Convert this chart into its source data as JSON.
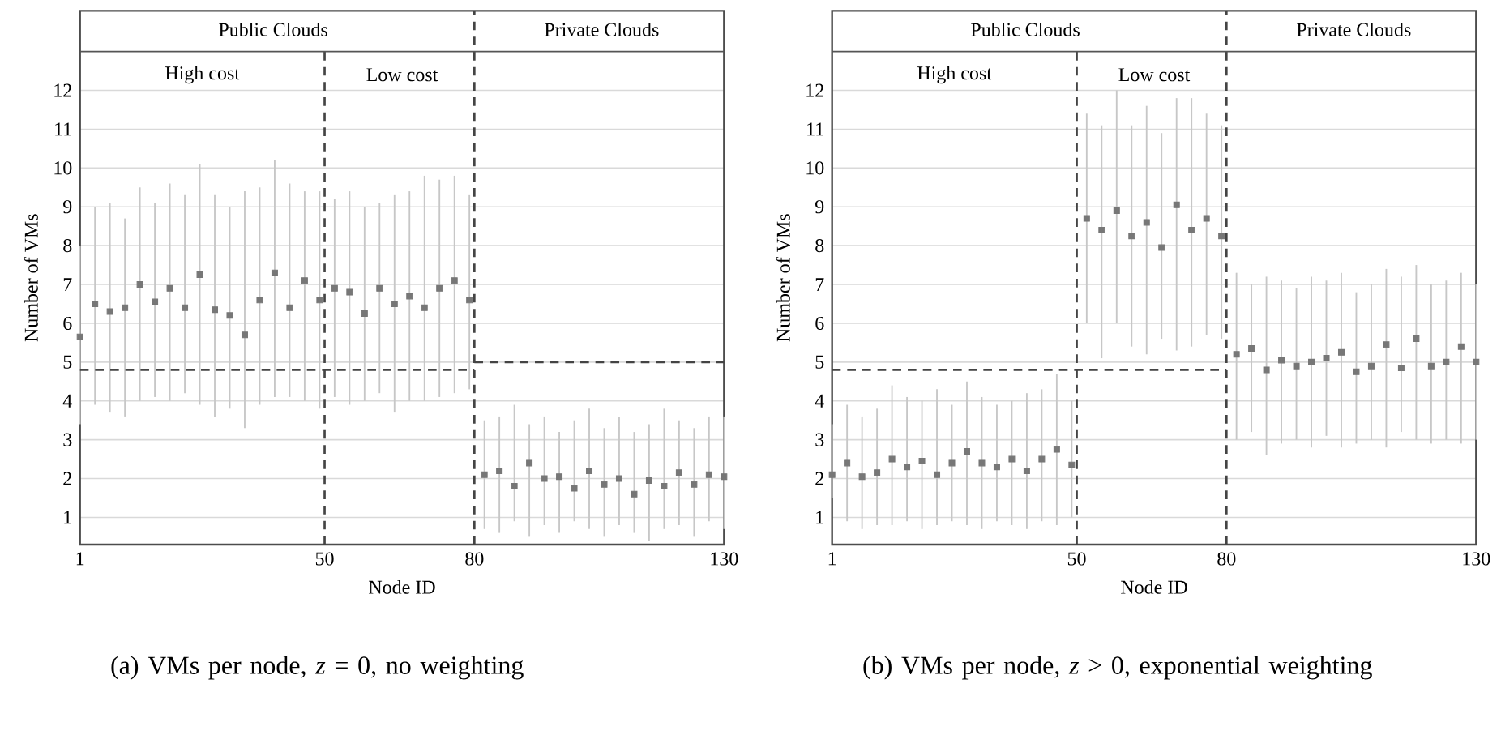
{
  "chart_data": [
    {
      "type": "scatter",
      "xlabel": "Node ID",
      "ylabel": "Number of VMs",
      "xlim": [
        1,
        130
      ],
      "xticks": [
        1,
        50,
        80,
        130
      ],
      "ylim": [
        0.3,
        14.05
      ],
      "yticks": [
        1,
        2,
        3,
        4,
        5,
        6,
        7,
        8,
        9,
        10,
        11,
        12
      ],
      "grid": "y",
      "series": [
        {
          "color": "#777777",
          "marker": "square",
          "x": [
            1,
            4,
            7,
            10,
            13,
            16,
            19,
            22,
            25,
            28,
            31,
            34,
            37,
            40,
            43,
            46,
            49,
            52,
            55,
            58,
            61,
            64,
            67,
            70,
            73,
            76,
            79,
            82,
            85,
            88,
            91,
            94,
            97,
            100,
            103,
            106,
            109,
            112,
            115,
            118,
            121,
            124,
            127,
            130
          ],
          "values": [
            5.65,
            6.5,
            6.3,
            6.4,
            7.0,
            6.55,
            6.9,
            6.4,
            7.25,
            6.35,
            6.2,
            5.7,
            6.6,
            7.3,
            6.4,
            7.1,
            6.6,
            6.9,
            6.8,
            6.25,
            6.9,
            6.5,
            6.7,
            6.4,
            6.9,
            7.1,
            6.6,
            2.1,
            2.2,
            1.8,
            2.4,
            2.0,
            2.05,
            1.75,
            2.2,
            1.85,
            2.0,
            1.6,
            1.95,
            1.8,
            2.15,
            1.85,
            2.1,
            2.05
          ],
          "errors": [
            [
              3.4,
              8.0
            ],
            [
              3.9,
              9.0
            ],
            [
              3.7,
              9.1
            ],
            [
              3.6,
              8.7
            ],
            [
              4.0,
              9.5
            ],
            [
              4.1,
              9.1
            ],
            [
              4.0,
              9.6
            ],
            [
              4.2,
              9.3
            ],
            [
              3.9,
              10.1
            ],
            [
              3.6,
              9.3
            ],
            [
              3.8,
              9.0
            ],
            [
              3.3,
              9.4
            ],
            [
              3.9,
              9.5
            ],
            [
              4.1,
              10.2
            ],
            [
              4.1,
              9.6
            ],
            [
              4.0,
              9.4
            ],
            [
              3.8,
              9.4
            ],
            [
              4.1,
              9.2
            ],
            [
              3.9,
              9.4
            ],
            [
              4.0,
              9.0
            ],
            [
              4.2,
              9.1
            ],
            [
              3.7,
              9.3
            ],
            [
              4.0,
              9.4
            ],
            [
              4.0,
              9.8
            ],
            [
              4.1,
              9.7
            ],
            [
              4.2,
              9.8
            ],
            [
              4.3,
              9.3
            ],
            [
              0.7,
              3.5
            ],
            [
              0.6,
              3.6
            ],
            [
              0.9,
              3.9
            ],
            [
              0.5,
              3.4
            ],
            [
              0.8,
              3.6
            ],
            [
              0.6,
              3.2
            ],
            [
              0.9,
              3.5
            ],
            [
              0.7,
              3.8
            ],
            [
              0.5,
              3.3
            ],
            [
              0.8,
              3.6
            ],
            [
              0.6,
              3.2
            ],
            [
              0.4,
              3.4
            ],
            [
              0.7,
              3.8
            ],
            [
              0.8,
              3.5
            ],
            [
              0.5,
              3.3
            ],
            [
              0.9,
              3.6
            ],
            [
              0.7,
              3.6
            ]
          ]
        },
        {
          "type": "line",
          "color": "#444444",
          "line_style": "dashed",
          "x": [
            1,
            80
          ],
          "values": [
            4.8,
            4.8
          ]
        },
        {
          "type": "line",
          "color": "#444444",
          "line_style": "dashed",
          "x": [
            80,
            130
          ],
          "values": [
            5.0,
            5.0
          ]
        },
        {
          "type": "line",
          "color": "#444444",
          "line_style": "dashed",
          "x": [
            50,
            50
          ],
          "values": [
            0.3,
            13
          ]
        },
        {
          "type": "line",
          "color": "#444444",
          "line_style": "dashed",
          "x": [
            80,
            80
          ],
          "values": [
            0.3,
            14.05
          ]
        }
      ],
      "ref_lines": [
        {
          "axis": "y",
          "value": 13,
          "color": "#555555",
          "line_style": "solid"
        }
      ],
      "annotations": [
        "Public Clouds",
        "Private Clouds",
        "High cost",
        "Low cost",
        "(a) VMs per node, *z* = 0, no weighting"
      ]
    },
    {
      "type": "scatter",
      "xlabel": "Node ID",
      "ylabel": "Number of VMs",
      "xlim": [
        1,
        130
      ],
      "xticks": [
        1,
        50,
        80,
        130
      ],
      "ylim": [
        0.3,
        14.05
      ],
      "yticks": [
        1,
        2,
        3,
        4,
        5,
        6,
        7,
        8,
        9,
        10,
        11,
        12
      ],
      "grid": "y",
      "series": [
        {
          "color": "#777777",
          "marker": "square",
          "x": [
            1,
            4,
            7,
            10,
            13,
            16,
            19,
            22,
            25,
            28,
            31,
            34,
            37,
            40,
            43,
            46,
            49,
            52,
            55,
            58,
            61,
            64,
            67,
            70,
            73,
            76,
            79,
            82,
            85,
            88,
            91,
            94,
            97,
            100,
            103,
            106,
            109,
            112,
            115,
            118,
            121,
            124,
            127,
            130
          ],
          "values": [
            2.1,
            2.4,
            2.05,
            2.15,
            2.5,
            2.3,
            2.45,
            2.1,
            2.4,
            2.7,
            2.4,
            2.3,
            2.5,
            2.2,
            2.5,
            2.75,
            2.35,
            8.7,
            8.4,
            8.9,
            8.25,
            8.6,
            7.95,
            9.05,
            8.4,
            8.7,
            8.25,
            5.2,
            5.35,
            4.8,
            5.05,
            4.9,
            5.0,
            5.1,
            5.25,
            4.75,
            4.9,
            5.45,
            4.85,
            5.6,
            4.9,
            5.0,
            5.4,
            5.0
          ],
          "errors": [
            [
              1.5,
              3.4
            ],
            [
              0.9,
              3.9
            ],
            [
              0.7,
              3.6
            ],
            [
              0.8,
              3.8
            ],
            [
              0.8,
              4.4
            ],
            [
              0.9,
              4.1
            ],
            [
              0.7,
              4.0
            ],
            [
              0.8,
              4.3
            ],
            [
              0.9,
              3.9
            ],
            [
              0.8,
              4.5
            ],
            [
              0.7,
              4.1
            ],
            [
              0.9,
              3.9
            ],
            [
              0.8,
              4.0
            ],
            [
              0.7,
              4.2
            ],
            [
              0.9,
              4.3
            ],
            [
              0.8,
              4.7
            ],
            [
              1.0,
              4.0
            ],
            [
              6.0,
              11.4
            ],
            [
              5.1,
              11.1
            ],
            [
              6.0,
              12.0
            ],
            [
              5.4,
              11.1
            ],
            [
              5.2,
              11.6
            ],
            [
              5.6,
              10.9
            ],
            [
              5.3,
              11.8
            ],
            [
              5.4,
              11.8
            ],
            [
              5.7,
              11.4
            ],
            [
              5.6,
              11.1
            ],
            [
              3.0,
              7.3
            ],
            [
              3.2,
              7.0
            ],
            [
              2.6,
              7.2
            ],
            [
              2.9,
              7.1
            ],
            [
              3.0,
              6.9
            ],
            [
              2.8,
              7.2
            ],
            [
              3.1,
              7.1
            ],
            [
              2.8,
              7.3
            ],
            [
              2.9,
              6.8
            ],
            [
              3.0,
              7.0
            ],
            [
              2.8,
              7.4
            ],
            [
              3.2,
              7.2
            ],
            [
              3.0,
              7.5
            ],
            [
              2.9,
              7.0
            ],
            [
              3.0,
              7.1
            ],
            [
              2.9,
              7.3
            ],
            [
              3.0,
              7.0
            ]
          ]
        },
        {
          "type": "line",
          "color": "#444444",
          "line_style": "dashed",
          "x": [
            1,
            80
          ],
          "values": [
            4.8,
            4.8
          ]
        },
        {
          "type": "line",
          "color": "#444444",
          "line_style": "dashed",
          "x": [
            50,
            50
          ],
          "values": [
            0.3,
            13
          ]
        },
        {
          "type": "line",
          "color": "#444444",
          "line_style": "dashed",
          "x": [
            80,
            80
          ],
          "values": [
            0.3,
            14.05
          ]
        }
      ],
      "ref_lines": [
        {
          "axis": "y",
          "value": 13,
          "color": "#555555",
          "line_style": "solid"
        }
      ],
      "annotations": [
        "Public Clouds",
        "Private Clouds",
        "High cost",
        "Low cost",
        "(b) VMs per node, *z* > 0, exponential weighting"
      ]
    }
  ]
}
